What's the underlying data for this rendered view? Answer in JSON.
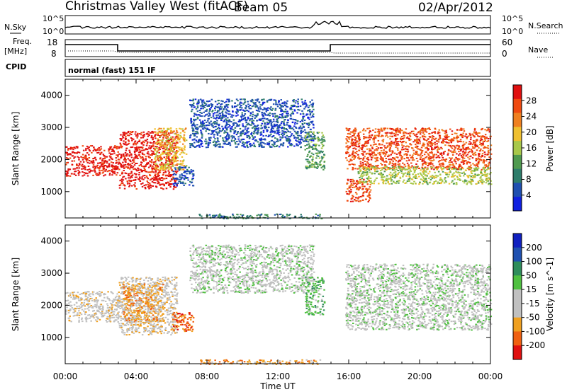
{
  "header": {
    "station_title": "Christmas Valley West (fitACF)",
    "beam_label": "Beam 05",
    "date": "02/Apr/2012"
  },
  "top_panels": {
    "nsky_label": "N.Sky",
    "nsearch_label": "N.Search",
    "noise_tick_top": "10^5",
    "noise_tick_bottom": "10^0",
    "freq_label_1": "Freq.",
    "freq_label_2": "[MHz]",
    "freq_ticks": [
      "18",
      "8"
    ],
    "nave_label": "Nave",
    "nave_ticks": [
      "60",
      "0"
    ],
    "cpid_label": "CPID",
    "cpid_value": "normal (fast) 151 IF"
  },
  "colors": {
    "power_scale": [
      "#1020e0",
      "#1f4fb0",
      "#2e7d6b",
      "#4f9a4f",
      "#a8c84a",
      "#f0c030",
      "#f08020",
      "#f04a10",
      "#e01010"
    ],
    "velocity_scale": [
      "#e01010",
      "#f06010",
      "#f0a020",
      "#c0c0c0",
      "#c0c0c0",
      "#4fc040",
      "#2e8d5b",
      "#1f50b0",
      "#1020c0"
    ],
    "ground_scatter": "#c0c0c0"
  },
  "chart_data": [
    {
      "type": "heatmap",
      "name": "power",
      "ylabel": "Slant Range [km]",
      "colorbar_label": "Power [dB]",
      "colorbar_ticks": [
        "28",
        "24",
        "20",
        "16",
        "12",
        "8",
        "4"
      ],
      "x_ticks": [
        "00:00",
        "04:00",
        "08:00",
        "12:00",
        "16:00",
        "20:00",
        "00:00"
      ],
      "y_ticks": [
        "4000",
        "3000",
        "2000",
        "1000"
      ],
      "xlim_hours": [
        0,
        24
      ],
      "ylim_km": [
        180,
        4500
      ],
      "regions": [
        {
          "t0": 0.0,
          "t1": 3.0,
          "r0": 1500,
          "r1": 2450,
          "level": 8
        },
        {
          "t0": 3.0,
          "t1": 6.3,
          "r0": 1100,
          "r1": 2900,
          "level": 8
        },
        {
          "t0": 5.0,
          "t1": 6.8,
          "r0": 1700,
          "r1": 3000,
          "level": 5
        },
        {
          "t0": 6.0,
          "t1": 7.2,
          "r0": 1200,
          "r1": 1800,
          "level": 1
        },
        {
          "t0": 7.0,
          "t1": 14.0,
          "r0": 2400,
          "r1": 3900,
          "level": 1
        },
        {
          "t0": 13.5,
          "t1": 14.6,
          "r0": 1700,
          "r1": 2900,
          "level": 3
        },
        {
          "t0": 15.8,
          "t1": 17.2,
          "r0": 700,
          "r1": 1400,
          "level": 7
        },
        {
          "t0": 15.8,
          "t1": 24.0,
          "r0": 1700,
          "r1": 3000,
          "level": 7
        },
        {
          "t0": 16.5,
          "t1": 24.0,
          "r0": 1250,
          "r1": 1800,
          "level": 4
        },
        {
          "t0": 7.5,
          "t1": 14.5,
          "r0": 180,
          "r1": 320,
          "level": 2
        }
      ]
    },
    {
      "type": "heatmap",
      "name": "velocity",
      "ylabel": "Slant Range [km]",
      "xlabel": "Time UT",
      "colorbar_label": "Velocity [m s^-1]",
      "colorbar_ticks": [
        "200",
        "100",
        "50",
        "15",
        "-15",
        "-50",
        "-100",
        "-200"
      ],
      "x_ticks": [
        "00:00",
        "04:00",
        "08:00",
        "12:00",
        "16:00",
        "20:00",
        "00:00"
      ],
      "y_ticks": [
        "4000",
        "3000",
        "2000",
        "1000"
      ],
      "xlim_hours": [
        0,
        24
      ],
      "ylim_km": [
        180,
        4500
      ],
      "regions": [
        {
          "t0": 0.0,
          "t1": 3.0,
          "r0": 1500,
          "r1": 2450,
          "level": 3
        },
        {
          "t0": 3.0,
          "t1": 6.3,
          "r0": 1100,
          "r1": 2900,
          "level": 3
        },
        {
          "t0": 3.2,
          "t1": 5.5,
          "r0": 1500,
          "r1": 2700,
          "level": 2
        },
        {
          "t0": 6.0,
          "t1": 7.2,
          "r0": 1200,
          "r1": 1800,
          "level": 1
        },
        {
          "t0": 7.0,
          "t1": 14.0,
          "r0": 2400,
          "r1": 3900,
          "level": 4
        },
        {
          "t0": 13.5,
          "t1": 14.6,
          "r0": 1700,
          "r1": 2900,
          "level": 5
        },
        {
          "t0": 15.8,
          "t1": 24.0,
          "r0": 1250,
          "r1": 3300,
          "level": 4
        },
        {
          "t0": 7.5,
          "t1": 14.5,
          "r0": 180,
          "r1": 320,
          "level": 2
        }
      ]
    }
  ]
}
